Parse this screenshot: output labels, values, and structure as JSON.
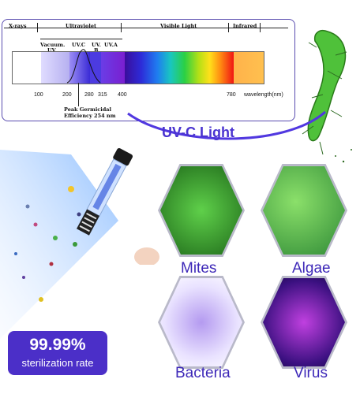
{
  "spectrum": {
    "bands": {
      "xrays": "X-rays",
      "ultraviolet": "Ultraviolet",
      "visible": "Visible Light",
      "infrared": "Infrared",
      "vacuum_uv_1": "Vacuum.",
      "vacuum_uv_2": "UV",
      "uvc": "UV.C",
      "uvb_1": "UV.",
      "uvb_2": "B",
      "uva": "UV.A"
    },
    "ticks": [
      "100",
      "200",
      "280",
      "315",
      "400",
      "780"
    ],
    "axis_label": "wavelength(nm)",
    "peak_1": "Peak Germicidal",
    "peak_2": "Efficiency 254 nm"
  },
  "headline": "UV-C Light",
  "organisms": [
    "Mites",
    "Algae",
    "Bacteria",
    "Virus"
  ],
  "stat": {
    "value": "99.99%",
    "caption": "sterilization rate"
  },
  "colors": {
    "accent": "#4a33d0",
    "stat_bg": "#4b2fc8"
  }
}
